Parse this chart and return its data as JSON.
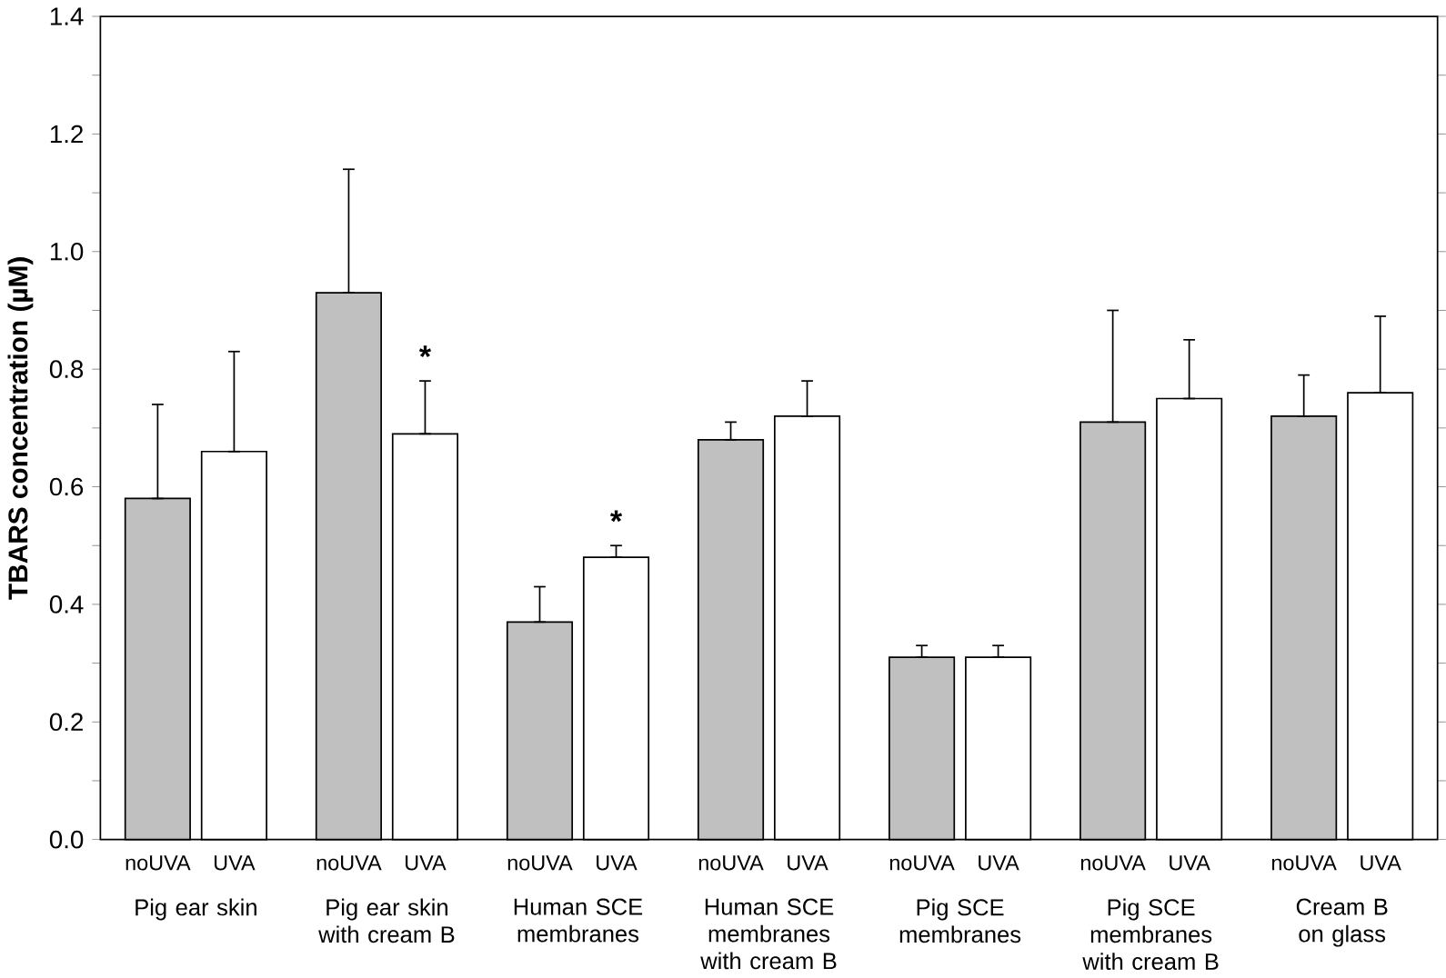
{
  "chart_data": {
    "type": "bar",
    "ylabel": "TBARS concentration (µM)",
    "categories": [
      "Pig ear skin",
      "Pig ear skin with cream B",
      "Human SCE membranes",
      "Human SCE membranes with cream B",
      "Pig SCE membranes",
      "Pig SCE membranes with cream B",
      "Cream B on glass"
    ],
    "series": [
      {
        "name": "noUVA",
        "color": "#c0c0c0",
        "values": [
          0.58,
          0.93,
          0.37,
          0.68,
          0.31,
          0.71,
          0.72
        ],
        "errors": [
          [
            0.58,
            0.74
          ],
          [
            0.93,
            1.14
          ],
          [
            0.37,
            0.43
          ],
          [
            0.68,
            0.71
          ],
          [
            0.31,
            0.33
          ],
          [
            0.71,
            0.9
          ],
          [
            0.72,
            0.79
          ]
        ]
      },
      {
        "name": "UVA",
        "color": "#ffffff",
        "values": [
          0.66,
          0.69,
          0.48,
          0.72,
          0.31,
          0.75,
          0.76
        ],
        "errors": [
          [
            0.66,
            0.83
          ],
          [
            0.69,
            0.78
          ],
          [
            0.48,
            0.5
          ],
          [
            0.72,
            0.78
          ],
          [
            0.31,
            0.33
          ],
          [
            0.75,
            0.85
          ],
          [
            0.76,
            0.89
          ]
        ],
        "value_labels": [
          null,
          "*",
          "*",
          null,
          null,
          null,
          null
        ]
      }
    ],
    "ylim": [
      0,
      1.4
    ],
    "yticks": [
      {
        "value": 0,
        "label": "0.0"
      },
      {
        "value": 0.1,
        "label": null
      },
      {
        "value": 0.2,
        "label": "0.2"
      },
      {
        "value": 0.3,
        "label": null
      },
      {
        "value": 0.4,
        "label": "0.4"
      },
      {
        "value": 0.5,
        "label": null
      },
      {
        "value": 0.6,
        "label": "0.6"
      },
      {
        "value": 0.7,
        "label": null
      },
      {
        "value": 0.8,
        "label": "0.8"
      },
      {
        "value": 0.9,
        "label": null
      },
      {
        "value": 1.0,
        "label": "1.0"
      },
      {
        "value": 1.1,
        "label": null
      },
      {
        "value": 1.2,
        "label": "1.2"
      },
      {
        "value": 1.3,
        "label": null
      },
      {
        "value": 1.4,
        "label": "1.4"
      }
    ]
  }
}
